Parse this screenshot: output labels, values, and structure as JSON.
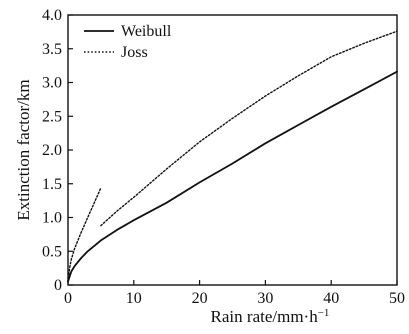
{
  "chart_data": {
    "type": "line",
    "title": "",
    "xlabel": "Rain rate/mm·h",
    "xlabel_superscript": "−1",
    "ylabel": "Extinction factor/km",
    "xlim": [
      0,
      50
    ],
    "ylim": [
      0,
      4.0
    ],
    "x_ticks": [
      0,
      10,
      20,
      30,
      40,
      50
    ],
    "x_tick_labels": [
      "0",
      "10",
      "20",
      "30",
      "40",
      "50"
    ],
    "y_ticks": [
      0,
      0.5,
      1.0,
      1.5,
      2.0,
      2.5,
      3.0,
      3.5,
      4.0
    ],
    "y_tick_labels": [
      "0",
      "0.5",
      "1.0",
      "1.5",
      "2.0",
      "2.5",
      "3.0",
      "3.5",
      "4.0"
    ],
    "grid": false,
    "legend_position": "top-left",
    "series": [
      {
        "name": "Weibull",
        "style": "solid",
        "color": "#111111",
        "points": [
          [
            0,
            0.05
          ],
          [
            0.5,
            0.2
          ],
          [
            1,
            0.28
          ],
          [
            2,
            0.4
          ],
          [
            3,
            0.5
          ],
          [
            5,
            0.66
          ],
          [
            7.5,
            0.82
          ],
          [
            10,
            0.96
          ],
          [
            15,
            1.22
          ],
          [
            20,
            1.52
          ],
          [
            25,
            1.8
          ],
          [
            30,
            2.1
          ],
          [
            35,
            2.37
          ],
          [
            40,
            2.64
          ],
          [
            45,
            2.9
          ],
          [
            50,
            3.16
          ]
        ]
      },
      {
        "name": "Joss",
        "style": "dotted",
        "color": "#111111",
        "segments": [
          [
            [
              0,
              0.05
            ],
            [
              0.25,
              0.25
            ],
            [
              0.5,
              0.38
            ],
            [
              1,
              0.54
            ],
            [
              2,
              0.78
            ],
            [
              3,
              1.0
            ],
            [
              4,
              1.22
            ],
            [
              5,
              1.44
            ]
          ],
          [
            [
              5,
              0.88
            ],
            [
              7.5,
              1.1
            ],
            [
              10,
              1.3
            ],
            [
              15,
              1.72
            ],
            [
              20,
              2.12
            ],
            [
              25,
              2.47
            ],
            [
              30,
              2.8
            ],
            [
              35,
              3.1
            ],
            [
              40,
              3.38
            ],
            [
              45,
              3.58
            ],
            [
              50,
              3.76
            ]
          ]
        ]
      }
    ]
  }
}
